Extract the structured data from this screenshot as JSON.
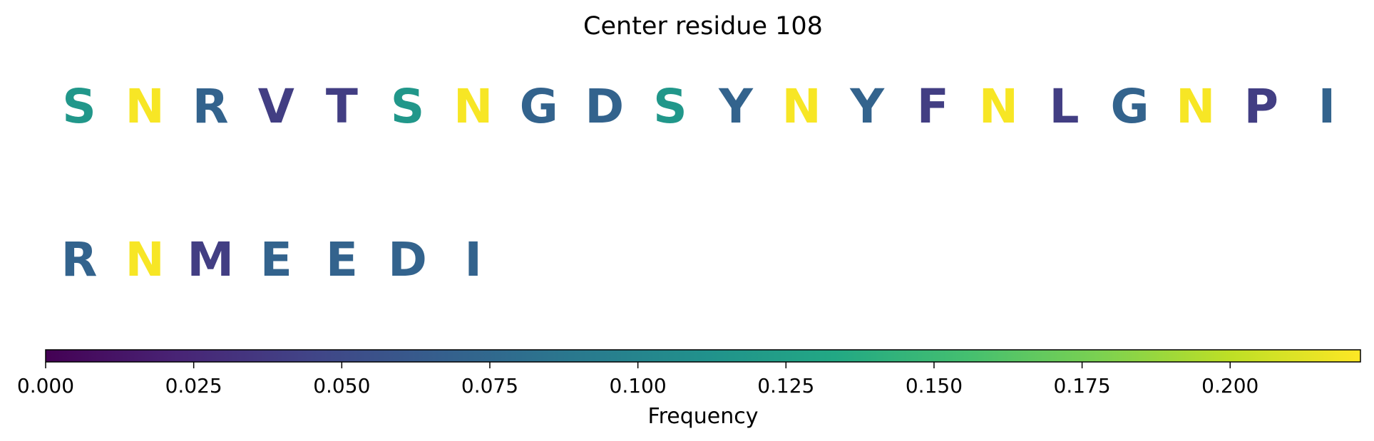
{
  "chart_data": {
    "type": "sequence-logo-colored",
    "title": "Center residue 108",
    "residues": [
      {
        "letter": "S",
        "frequency": 0.117
      },
      {
        "letter": "N",
        "frequency": 0.22
      },
      {
        "letter": "R",
        "frequency": 0.07
      },
      {
        "letter": "V",
        "frequency": 0.04
      },
      {
        "letter": "T",
        "frequency": 0.04
      },
      {
        "letter": "S",
        "frequency": 0.117
      },
      {
        "letter": "N",
        "frequency": 0.22
      },
      {
        "letter": "G",
        "frequency": 0.07
      },
      {
        "letter": "D",
        "frequency": 0.07
      },
      {
        "letter": "S",
        "frequency": 0.117
      },
      {
        "letter": "Y",
        "frequency": 0.07
      },
      {
        "letter": "N",
        "frequency": 0.22
      },
      {
        "letter": "Y",
        "frequency": 0.07
      },
      {
        "letter": "F",
        "frequency": 0.04
      },
      {
        "letter": "N",
        "frequency": 0.22
      },
      {
        "letter": "L",
        "frequency": 0.04
      },
      {
        "letter": "G",
        "frequency": 0.07
      },
      {
        "letter": "N",
        "frequency": 0.22
      },
      {
        "letter": "P",
        "frequency": 0.04
      },
      {
        "letter": "I",
        "frequency": 0.07
      },
      {
        "letter": "R",
        "frequency": 0.07
      },
      {
        "letter": "N",
        "frequency": 0.22
      },
      {
        "letter": "M",
        "frequency": 0.04
      },
      {
        "letter": "E",
        "frequency": 0.07
      },
      {
        "letter": "E",
        "frequency": 0.07
      },
      {
        "letter": "D",
        "frequency": 0.07
      },
      {
        "letter": "I",
        "frequency": 0.07
      }
    ],
    "colorbar": {
      "label": "Frequency",
      "colormap": "viridis",
      "range": [
        0.0,
        0.222
      ],
      "ticks": [
        0.0,
        0.025,
        0.05,
        0.075,
        0.1,
        0.125,
        0.15,
        0.175,
        0.2
      ],
      "tick_labels": [
        "0.000",
        "0.025",
        "0.050",
        "0.075",
        "0.100",
        "0.125",
        "0.150",
        "0.175",
        "0.200"
      ],
      "orientation": "horizontal"
    },
    "letters_per_row": 20
  }
}
